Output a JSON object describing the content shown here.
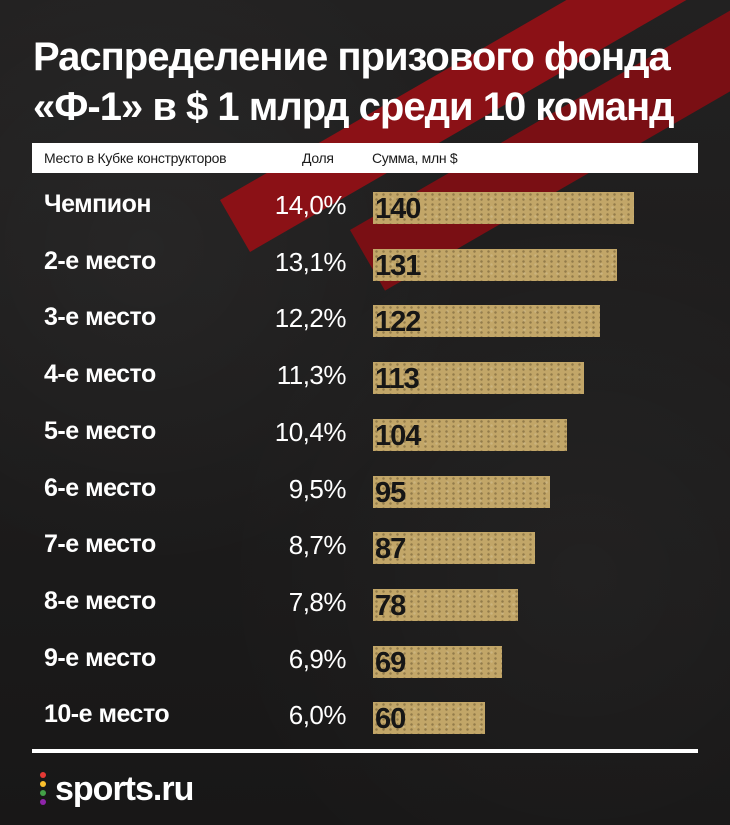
{
  "title_lines": [
    "Распределение призового фонда",
    "«Ф-1» в $ 1 млрд среди 10 команд"
  ],
  "header": {
    "place_col": "Место в Кубке конструкторов",
    "share_col": "Доля",
    "amount_col": "Сумма, млн $"
  },
  "logo": "sports.ru",
  "colors": {
    "background": "#1c1b1b",
    "stripe": "#8b1116",
    "bar": "#c2a668",
    "text": "#ffffff"
  },
  "chart_data": {
    "type": "bar",
    "orientation": "horizontal",
    "categories": [
      "Чемпион",
      "2-е место",
      "3-е место",
      "4-е место",
      "5-е место",
      "6-е место",
      "7-е место",
      "8-е место",
      "9-е место",
      "10-е место"
    ],
    "shares": [
      "14,0%",
      "13,1%",
      "12,2%",
      "11,3%",
      "10,4%",
      "9,5%",
      "8,7%",
      "7,8%",
      "6,9%",
      "6,0%"
    ],
    "values": [
      140,
      131,
      122,
      113,
      104,
      95,
      87,
      78,
      69,
      60
    ],
    "value_labels": [
      "140",
      "131",
      "122",
      "113",
      "104",
      "95",
      "87",
      "78",
      "69",
      "60"
    ],
    "xlim": [
      0,
      140
    ]
  }
}
